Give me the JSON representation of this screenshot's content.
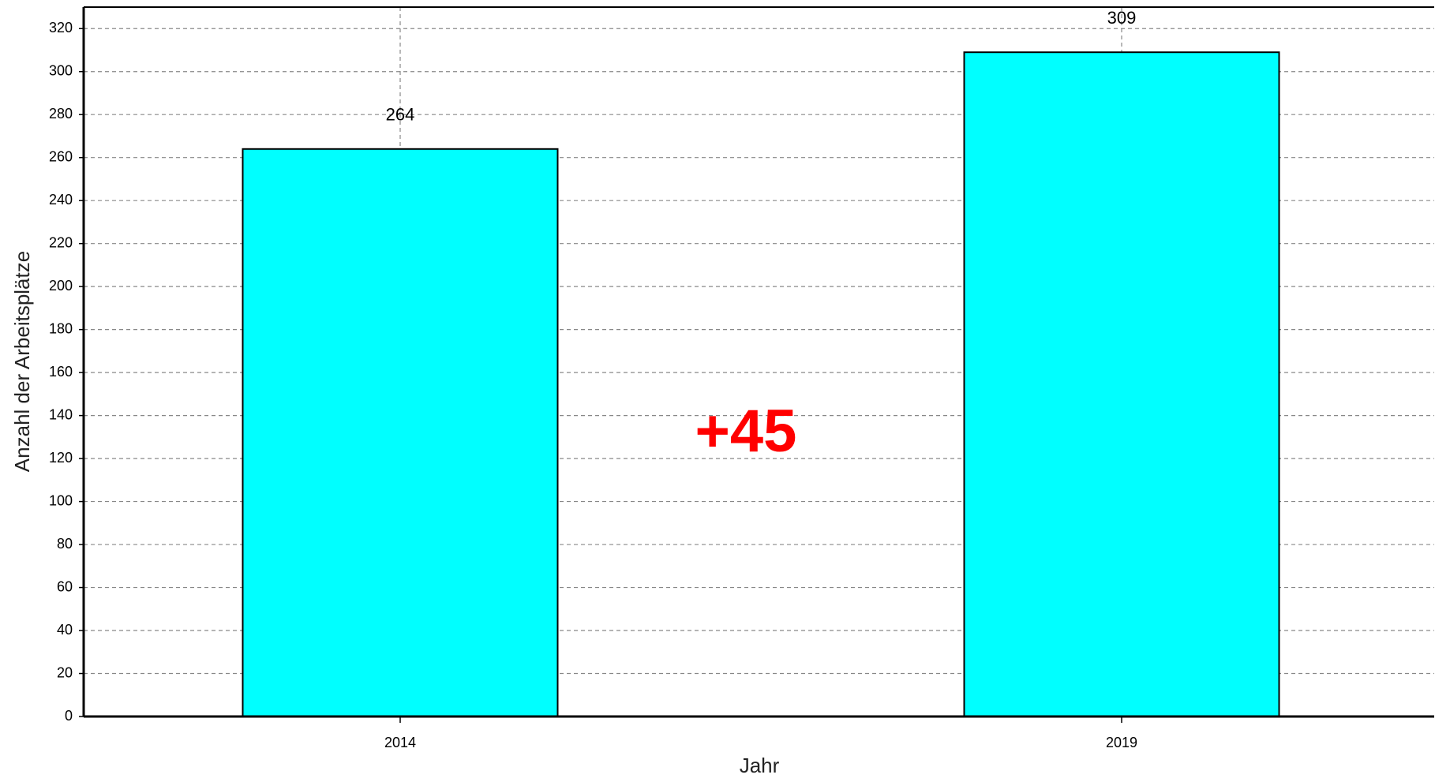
{
  "chart_data": {
    "type": "bar",
    "y_label": "Anzahl der Arbeitsplätze",
    "x_label": "Jahr",
    "annotation": "+45",
    "categories": [
      "2014",
      "2019"
    ],
    "values": [
      264,
      309
    ],
    "color": "#00ffff",
    "ylim": [
      0,
      330
    ],
    "yticks": [
      0,
      20,
      40,
      60,
      80,
      100,
      120,
      140,
      160,
      180,
      200,
      220,
      240,
      260,
      280,
      300,
      320
    ],
    "grid": true
  }
}
